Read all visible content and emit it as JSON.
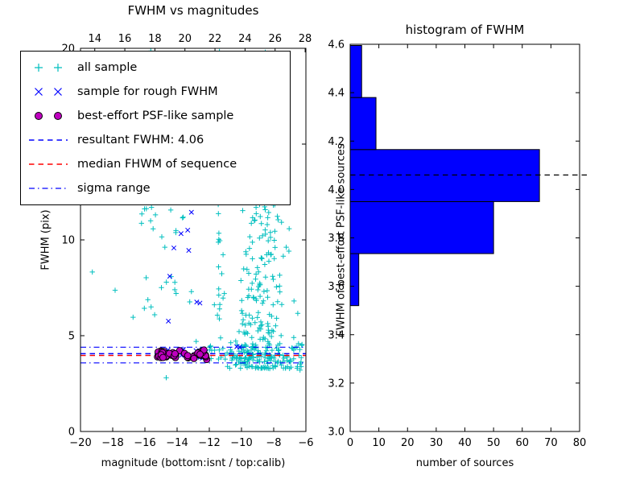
{
  "chart_data": [
    {
      "id": "fwhm_vs_magnitudes",
      "type": "scatter",
      "title": "FWHM vs magnitudes",
      "xlabel": "magnitude (bottom:isnt / top:calib)",
      "ylabel": "FWHM (pix)",
      "xlim": [
        -20,
        -6
      ],
      "ylim": [
        0,
        20
      ],
      "top_xlim": [
        13.05,
        28.05
      ],
      "x_ticks_bottom": {
        "values": [
          -20,
          -18,
          -16,
          -14,
          -12,
          -10,
          -8,
          -6
        ],
        "labels": [
          "−20",
          "−18",
          "−16",
          "−14",
          "−12",
          "−10",
          "−8",
          "−6"
        ]
      },
      "x_ticks_top": {
        "values": [
          14,
          16,
          18,
          20,
          22,
          24,
          26,
          28
        ],
        "labels": [
          "14",
          "16",
          "18",
          "20",
          "22",
          "24",
          "26",
          "28"
        ]
      },
      "y_ticks": {
        "values": [
          0,
          5,
          10,
          15,
          20
        ],
        "labels": [
          "0",
          "5",
          "10",
          "15",
          "20"
        ]
      },
      "legend": {
        "position": "upper-left",
        "items": [
          {
            "label": "all sample",
            "marker": "plus",
            "color": "#00bfbf"
          },
          {
            "label": "sample for rough FWHM",
            "marker": "x",
            "color": "#0000ff"
          },
          {
            "label": "best-effort PSF-like sample",
            "marker": "circle",
            "color": "#bf00bf",
            "edge": "#000000"
          },
          {
            "label": "resultant FWHM: 4.06",
            "marker": "dashed-line",
            "color": "#0000ff"
          },
          {
            "label": "median FHWM of sequence",
            "marker": "dashed-line",
            "color": "#ff0000"
          },
          {
            "label": "sigma range",
            "marker": "dashdot-line",
            "color": "#0000ff"
          }
        ]
      },
      "series": [
        {
          "name": "all sample",
          "marker": "plus",
          "color": "#00bfbf",
          "clusters": [
            {
              "kind": "funnel",
              "x_mean": -8.75,
              "x_sd": 0.5,
              "y_base": 3.3,
              "y_span": 16.6,
              "pow": 2.2,
              "count": 300
            },
            {
              "kind": "band",
              "x_min": -10.8,
              "x_max": -6.2,
              "y_mean": 4.0,
              "y_sd": 0.33,
              "count": 85
            },
            {
              "kind": "column",
              "x_mean": -11.35,
              "x_sd": 0.13,
              "y_min": 4.2,
              "y_max": 20,
              "count": 45
            },
            {
              "kind": "box",
              "x_min": -16.3,
              "x_max": -13.1,
              "y_min": 6,
              "y_max": 20,
              "count": 55
            },
            {
              "kind": "column",
              "x_mean": -15.5,
              "x_sd": 0.09,
              "y_min": 10.5,
              "y_max": 20,
              "count": 18
            },
            {
              "kind": "box",
              "x_min": -19.6,
              "x_max": -12.0,
              "y_min": 1.8,
              "y_max": 20,
              "count": 10
            },
            {
              "kind": "band",
              "x_min": -13.2,
              "x_max": -11.0,
              "y_mean": 4.1,
              "y_sd": 0.25,
              "count": 20
            }
          ]
        },
        {
          "name": "sample for rough FWHM",
          "marker": "x",
          "color": "#0000ff",
          "clusters": [
            {
              "kind": "band",
              "x_min": -15.0,
              "x_max": -12.2,
              "y_mean": 4.18,
              "y_sd": 0.16,
              "count": 13
            },
            {
              "kind": "box",
              "x_min": -14.6,
              "x_max": -12.2,
              "y_min": 5.2,
              "y_max": 12.2,
              "count": 9
            },
            {
              "kind": "band",
              "x_min": -10.6,
              "x_max": -10.1,
              "y_mean": 4.45,
              "y_sd": 0.1,
              "count": 2
            }
          ]
        },
        {
          "name": "best-effort PSF-like sample",
          "marker": "circle",
          "color": "#bf00bf",
          "edge": "#000000",
          "clusters": [
            {
              "kind": "band",
              "x_min": -15.25,
              "x_max": -12.15,
              "y_mean": 4.03,
              "y_sd": 0.12,
              "count": 58
            }
          ]
        }
      ],
      "lines": [
        {
          "name": "resultant-fwhm",
          "y": 4.06,
          "style": "dashed",
          "color": "#0000ff"
        },
        {
          "name": "median-fhwm",
          "y": 3.97,
          "style": "dashed",
          "color": "#ff0000"
        },
        {
          "name": "sigma-low",
          "y": 3.58,
          "style": "dashdot",
          "color": "#0000ff"
        },
        {
          "name": "sigma-high",
          "y": 4.4,
          "style": "dashdot",
          "color": "#0000ff"
        }
      ],
      "seed": 42
    },
    {
      "id": "histogram_of_fwhm",
      "type": "bar",
      "orientation": "horizontal",
      "title": "histogram of FWHM",
      "xlabel": "number of sources",
      "ylabel": "FWHM of best-effort PSF-like sources",
      "xlim": [
        0,
        80
      ],
      "ylim": [
        3.0,
        4.6
      ],
      "x_ticks": {
        "values": [
          0,
          10,
          20,
          30,
          40,
          50,
          60,
          70,
          80
        ],
        "labels": [
          "0",
          "10",
          "20",
          "30",
          "40",
          "50",
          "60",
          "70",
          "80"
        ]
      },
      "y_ticks": {
        "values": [
          3.0,
          3.2,
          3.4,
          3.6,
          3.8,
          4.0,
          4.2,
          4.4,
          4.6
        ],
        "labels": [
          "3.0",
          "3.2",
          "3.4",
          "3.6",
          "3.8",
          "4.0",
          "4.2",
          "4.4",
          "4.6"
        ]
      },
      "bin_edges": [
        3.52,
        3.735,
        3.95,
        4.165,
        4.38,
        4.595
      ],
      "counts": [
        3,
        50,
        66,
        9,
        4
      ],
      "bar_color": "#0000ff",
      "bar_edge": "#000000",
      "median_line": {
        "y": 4.06,
        "style": "dashed",
        "color": "#000000"
      }
    }
  ]
}
